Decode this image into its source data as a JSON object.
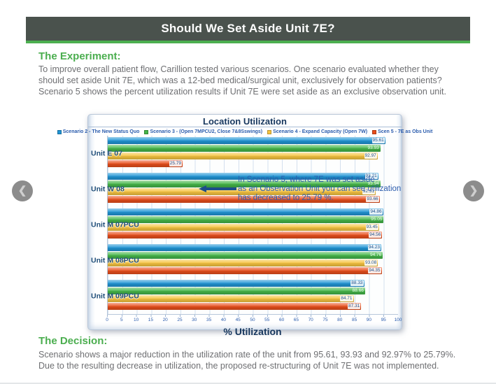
{
  "header": {
    "title": "Should We Set Aside Unit 7E?"
  },
  "experiment": {
    "heading": "The Experiment:",
    "body": "To improve overall patient flow, Carillion tested various scenarios. One scenario evaluated whether they should set aside Unit 7E, which was a 12-bed medical/surgical unit, exclusively for observation patients? Scenario 5 shows the percent utilization results if Unit 7E were set aside as an exclusive observation unit."
  },
  "decision": {
    "heading": "The Decision:",
    "body": "Scenario shows a major reduction in the utilization rate of the unit from 95.61, 93.93 and 92.97% to 25.79%. Due to the resulting decrease in utilization, the proposed re-structuring of Unit 7E was not implemented."
  },
  "carousel": {
    "prev_glyph": "❮",
    "next_glyph": "❯"
  },
  "colors": {
    "header_bar": "#4a524d",
    "accent_green": "#4caf50",
    "chart_text_blue": "#2b5cad",
    "chart_title_navy": "#17375e"
  },
  "chart_data": {
    "type": "bar",
    "orientation": "horizontal",
    "title": "Location Utilization",
    "xlabel": "% Utilization",
    "xlim": [
      0,
      100
    ],
    "x_ticks": [
      0,
      5,
      10,
      15,
      20,
      25,
      30,
      35,
      40,
      45,
      50,
      55,
      60,
      65,
      70,
      75,
      80,
      85,
      90,
      95,
      100
    ],
    "grid": true,
    "legend_position": "top",
    "categories": [
      "Unit E 07",
      "Unit W 08",
      "Unit M 07PCU",
      "Unit M 08PCU",
      "Unit M 09PCU"
    ],
    "series": [
      {
        "name": "Scenario 2 - The New Status Quo",
        "color": "#2095d5",
        "values": [
          95.61,
          93.21,
          94.86,
          94.23,
          88.33
        ]
      },
      {
        "name": "Scenario 3 - (Open 7MPCU2, Close 7&8Sswings)",
        "color": "#45b649",
        "values": [
          93.93,
          93.94,
          95.05,
          94.76,
          88.66
        ]
      },
      {
        "name": "Scenario 4 - Expand Capacity (Open 7W)",
        "color": "#f6c440",
        "values": [
          92.97,
          92.31,
          93.45,
          93.08,
          84.71
        ]
      },
      {
        "name": "Scen 5 - 7E as Obs Unit",
        "color": "#e84e1b",
        "values": [
          25.79,
          93.66,
          94.56,
          94.35,
          87.31
        ]
      }
    ],
    "annotation": {
      "lines": [
        "In Scenario 5, where 7E was set aside",
        "as an Observation Unit you can see utilization",
        "has decreased to 25.79 %."
      ],
      "points_to_value": 25.79
    }
  }
}
